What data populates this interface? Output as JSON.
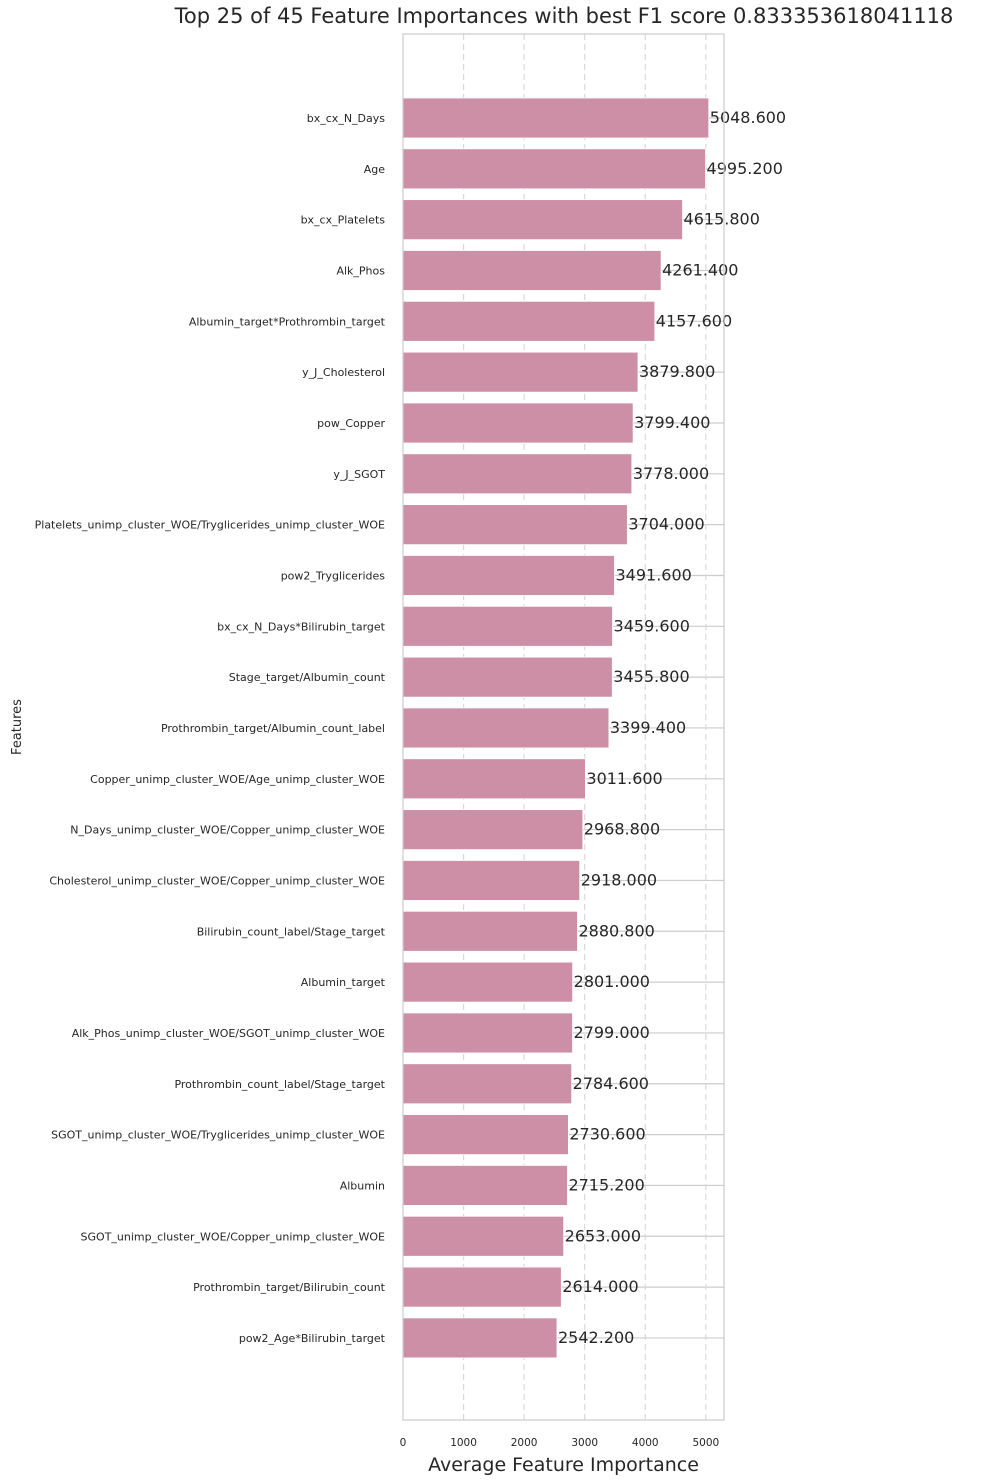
{
  "chart_data": {
    "type": "bar",
    "orientation": "horizontal",
    "title": "Top 25 of 45 Feature Importances with best F1 score 0.833353618041118",
    "xlabel": "Average Feature Importance",
    "ylabel": "Features",
    "xlim": [
      0,
      5300
    ],
    "x_ticks": [
      0,
      1000,
      2000,
      3000,
      4000,
      5000
    ],
    "grid": true,
    "bar_color": "#cc8fa5",
    "value_format": "{:.3f}",
    "categories": [
      "bx_cx_N_Days",
      "Age",
      "bx_cx_Platelets",
      "Alk_Phos",
      "Albumin_target*Prothrombin_target",
      "y_J_Cholesterol",
      "pow_Copper",
      "y_J_SGOT",
      "Platelets_unimp_cluster_WOE/Tryglicerides_unimp_cluster_WOE",
      "pow2_Tryglicerides",
      "bx_cx_N_Days*Bilirubin_target",
      "Stage_target/Albumin_count",
      "Prothrombin_target/Albumin_count_label",
      "Copper_unimp_cluster_WOE/Age_unimp_cluster_WOE",
      "N_Days_unimp_cluster_WOE/Copper_unimp_cluster_WOE",
      "Cholesterol_unimp_cluster_WOE/Copper_unimp_cluster_WOE",
      "Bilirubin_count_label/Stage_target",
      "Albumin_target",
      "Alk_Phos_unimp_cluster_WOE/SGOT_unimp_cluster_WOE",
      "Prothrombin_count_label/Stage_target",
      "SGOT_unimp_cluster_WOE/Tryglicerides_unimp_cluster_WOE",
      "Albumin",
      "SGOT_unimp_cluster_WOE/Copper_unimp_cluster_WOE",
      "Prothrombin_target/Bilirubin_count",
      "pow2_Age*Bilirubin_target"
    ],
    "values": [
      5048.6,
      4995.2,
      4615.8,
      4261.4,
      4157.6,
      3879.8,
      3799.4,
      3778.0,
      3704.0,
      3491.6,
      3459.6,
      3455.8,
      3399.4,
      3011.6,
      2968.8,
      2918.0,
      2880.8,
      2801.0,
      2799.0,
      2784.6,
      2730.6,
      2715.2,
      2653.0,
      2614.0,
      2542.2
    ]
  }
}
